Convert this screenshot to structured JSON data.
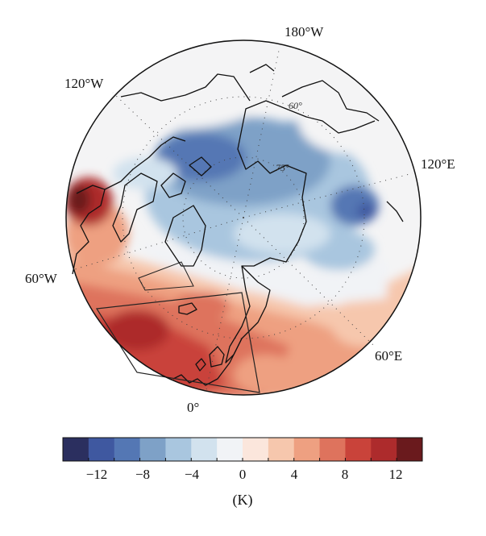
{
  "map": {
    "projection": "north-polar-stereographic",
    "longitude_labels": [
      "180°W",
      "120°W",
      "120°E",
      "60°W",
      "60°E",
      "0°"
    ],
    "latitude_labels": [
      "60°",
      "75°"
    ],
    "colors": {
      "c1": "#2b2f5f",
      "c2": "#3f58a0",
      "c3": "#5477b4",
      "c4": "#7ea1c7",
      "c5": "#a9c6df",
      "c6": "#d2e2ee",
      "c7": "#f1f3f6",
      "c8": "#fbe6dc",
      "c9": "#f6c7ad",
      "c10": "#eea081",
      "c11": "#de735d",
      "c12": "#c9433a",
      "c13": "#ad2b2c",
      "c14": "#6a1a1d"
    }
  },
  "colorbar": {
    "tick_labels": [
      "−12",
      "−8",
      "−4",
      "0",
      "4",
      "8",
      "12"
    ],
    "unit": "(K)",
    "min": -14,
    "max": 14,
    "step": 2
  }
}
